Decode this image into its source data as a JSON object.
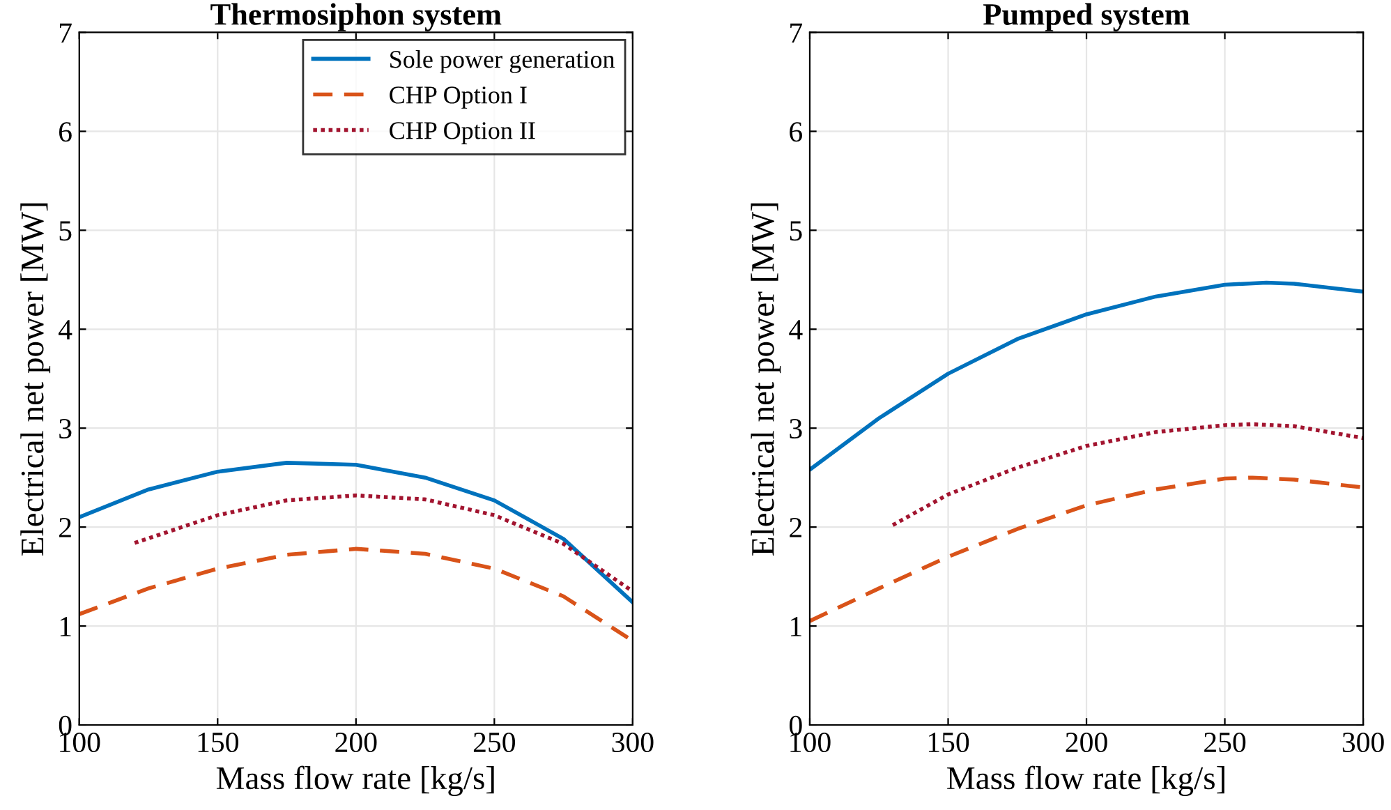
{
  "chart_data": [
    {
      "type": "line",
      "title": "Thermosiphon system",
      "xlabel": "Mass flow rate [kg/s]",
      "ylabel": "Electrical net power [MW]",
      "xlim": [
        100,
        300
      ],
      "ylim": [
        0,
        7
      ],
      "xticks": [
        100,
        150,
        200,
        250,
        300
      ],
      "yticks": [
        0,
        1,
        2,
        3,
        4,
        5,
        6,
        7
      ],
      "grid": true,
      "legend": "top right",
      "series": [
        {
          "name": "Sole power generation",
          "color": "#0072bd",
          "line_style": "solid",
          "x": [
            100,
            125,
            150,
            175,
            200,
            225,
            250,
            275,
            300
          ],
          "values": [
            2.1,
            2.38,
            2.56,
            2.65,
            2.63,
            2.5,
            2.27,
            1.88,
            1.24
          ]
        },
        {
          "name": "CHP Option I",
          "color": "#d95319",
          "line_style": "dashed",
          "x": [
            100,
            125,
            150,
            175,
            200,
            225,
            250,
            275,
            300
          ],
          "values": [
            1.12,
            1.38,
            1.58,
            1.72,
            1.78,
            1.73,
            1.58,
            1.3,
            0.85
          ]
        },
        {
          "name": "CHP Option II",
          "color": "#a2142f",
          "line_style": "dotted",
          "x": [
            120,
            150,
            175,
            200,
            225,
            250,
            275,
            300
          ],
          "values": [
            1.84,
            2.12,
            2.27,
            2.32,
            2.28,
            2.12,
            1.83,
            1.35
          ]
        }
      ]
    },
    {
      "type": "line",
      "title": "Pumped system",
      "xlabel": "Mass flow rate [kg/s]",
      "ylabel": "Electrical net power [MW]",
      "xlim": [
        100,
        300
      ],
      "ylim": [
        0,
        7
      ],
      "xticks": [
        100,
        150,
        200,
        250,
        300
      ],
      "yticks": [
        0,
        1,
        2,
        3,
        4,
        5,
        6,
        7
      ],
      "grid": true,
      "series": [
        {
          "color": "#0072bd",
          "line_style": "solid",
          "x": [
            100,
            125,
            150,
            175,
            200,
            225,
            250,
            265,
            275,
            300
          ],
          "values": [
            2.58,
            3.1,
            3.55,
            3.9,
            4.15,
            4.33,
            4.45,
            4.47,
            4.46,
            4.38
          ]
        },
        {
          "color": "#d95319",
          "line_style": "dashed",
          "x": [
            100,
            125,
            150,
            175,
            200,
            225,
            250,
            260,
            275,
            300
          ],
          "values": [
            1.05,
            1.38,
            1.7,
            1.98,
            2.22,
            2.38,
            2.49,
            2.5,
            2.48,
            2.4
          ]
        },
        {
          "color": "#a2142f",
          "line_style": "dotted",
          "x": [
            130,
            150,
            175,
            200,
            225,
            250,
            260,
            275,
            300
          ],
          "values": [
            2.02,
            2.33,
            2.6,
            2.82,
            2.96,
            3.03,
            3.04,
            3.02,
            2.9
          ]
        }
      ]
    }
  ]
}
